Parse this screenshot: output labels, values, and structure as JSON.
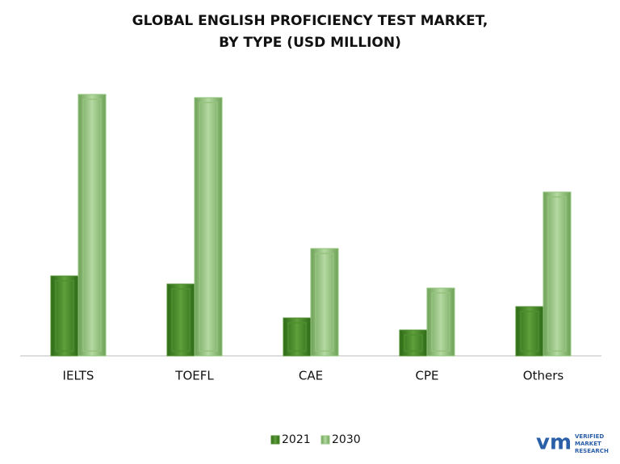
{
  "chart_data": {
    "type": "bar",
    "title": [
      "GLOBAL ENGLISH PROFICIENCY TEST MARKET,",
      "BY TYPE (USD MILLION)"
    ],
    "categories": [
      "IELTS",
      "TOEFL",
      "CAE",
      "CPE",
      "Others"
    ],
    "series": [
      {
        "name": "2021",
        "color": "#4f8f2f",
        "values": [
          99,
          89,
          47,
          32,
          61
        ]
      },
      {
        "name": "2030",
        "color": "#93c47d",
        "values": [
          324,
          320,
          133,
          84,
          203
        ]
      }
    ],
    "ylim": [
      0,
      330
    ],
    "legend": "bottom",
    "brand": [
      "VERIFIED",
      "MARKET",
      "RESEARCH"
    ]
  }
}
